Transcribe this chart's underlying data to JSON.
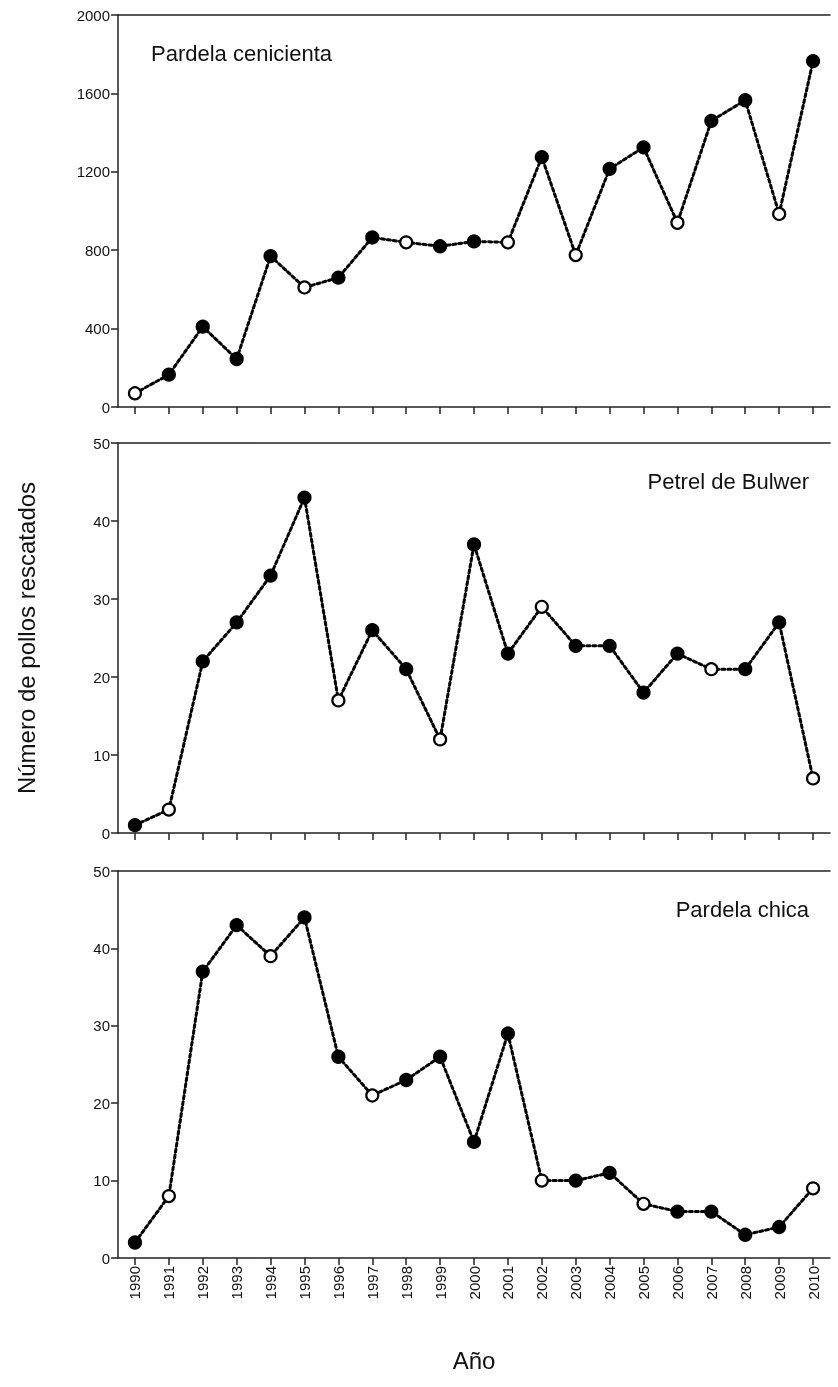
{
  "chart_data": [
    {
      "type": "line",
      "title": "Pardela cenicienta",
      "categories": [
        "1990",
        "1991",
        "1992",
        "1993",
        "1994",
        "1995",
        "1996",
        "1997",
        "1998",
        "1999",
        "2000",
        "2001",
        "2002",
        "2003",
        "2004",
        "2005",
        "2006",
        "2007",
        "2008",
        "2009",
        "2010"
      ],
      "ylim": [
        0,
        2000
      ],
      "yticks": [
        0,
        400,
        800,
        1200,
        1600,
        2000
      ],
      "tick_labels": "y",
      "marker": "circle",
      "line_style": "dotted",
      "series": [
        {
          "color": "#000000",
          "values": [
            70,
            165,
            410,
            245,
            770,
            610,
            660,
            865,
            840,
            820,
            845,
            840,
            1275,
            775,
            1215,
            1325,
            940,
            1460,
            1565,
            985,
            1765
          ],
          "colors": [
            "#ffffff",
            "#000000",
            "#000000",
            "#000000",
            "#000000",
            "#ffffff",
            "#000000",
            "#000000",
            "#ffffff",
            "#000000",
            "#000000",
            "#ffffff",
            "#000000",
            "#ffffff",
            "#000000",
            "#000000",
            "#ffffff",
            "#000000",
            "#000000",
            "#ffffff",
            "#000000"
          ]
        }
      ]
    },
    {
      "type": "line",
      "title": "Petrel de Bulwer",
      "ylabel": "Número de pollos rescatados",
      "categories": [
        "1990",
        "1991",
        "1992",
        "1993",
        "1994",
        "1995",
        "1996",
        "1997",
        "1998",
        "1999",
        "2000",
        "2001",
        "2002",
        "2003",
        "2004",
        "2005",
        "2006",
        "2007",
        "2008",
        "2009",
        "2010"
      ],
      "ylim": [
        0,
        50
      ],
      "yticks": [
        0,
        10,
        20,
        30,
        40,
        50
      ],
      "tick_labels": "y",
      "marker": "circle",
      "line_style": "dotted",
      "series": [
        {
          "color": "#000000",
          "values": [
            1,
            3,
            22,
            27,
            33,
            43,
            17,
            26,
            21,
            12,
            37,
            23,
            29,
            24,
            24,
            18,
            23,
            21,
            21,
            27,
            7
          ],
          "colors": [
            "#000000",
            "#ffffff",
            "#000000",
            "#000000",
            "#000000",
            "#000000",
            "#ffffff",
            "#000000",
            "#000000",
            "#ffffff",
            "#000000",
            "#000000",
            "#ffffff",
            "#000000",
            "#000000",
            "#000000",
            "#000000",
            "#ffffff",
            "#000000",
            "#000000",
            "#ffffff"
          ]
        }
      ]
    },
    {
      "type": "line",
      "title": "Pardela chica",
      "xlabel": "Año",
      "categories": [
        "1990",
        "1991",
        "1992",
        "1993",
        "1994",
        "1995",
        "1996",
        "1997",
        "1998",
        "1999",
        "2000",
        "2001",
        "2002",
        "2003",
        "2004",
        "2005",
        "2006",
        "2007",
        "2008",
        "2009",
        "2010"
      ],
      "ylim": [
        0,
        50
      ],
      "yticks": [
        0,
        10,
        20,
        30,
        40,
        50
      ],
      "marker": "circle",
      "line_style": "dotted",
      "series": [
        {
          "color": "#000000",
          "values": [
            2,
            8,
            37,
            43,
            39,
            44,
            26,
            21,
            23,
            26,
            15,
            29,
            10,
            10,
            11,
            7,
            6,
            6,
            3,
            4,
            9
          ],
          "colors": [
            "#000000",
            "#ffffff",
            "#000000",
            "#000000",
            "#ffffff",
            "#000000",
            "#000000",
            "#ffffff",
            "#000000",
            "#000000",
            "#000000",
            "#000000",
            "#ffffff",
            "#000000",
            "#000000",
            "#ffffff",
            "#000000",
            "#000000",
            "#000000",
            "#000000",
            "#ffffff"
          ]
        }
      ]
    }
  ]
}
